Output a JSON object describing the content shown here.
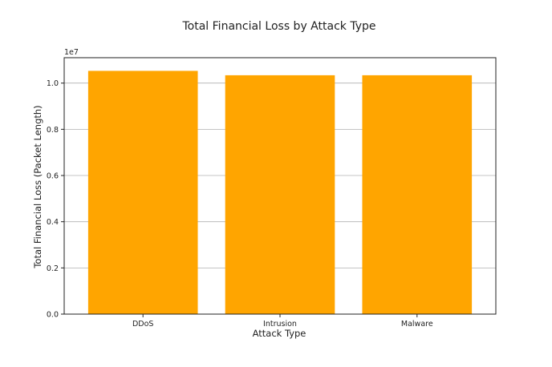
{
  "chart_data": {
    "type": "bar",
    "title": "Total Financial Loss by Attack Type",
    "xlabel": "Attack Type",
    "ylabel": "Total Financial Loss (Packet Length)",
    "y_offset_label": "1e7",
    "categories": [
      "DDoS",
      "Intrusion",
      "Malware"
    ],
    "values": [
      10530000,
      10340000,
      10340000
    ],
    "ylim": [
      0,
      11100000
    ],
    "yticks": [
      0,
      2000000,
      4000000,
      6000000,
      8000000,
      10000000
    ],
    "ytick_labels": [
      "0.0",
      "0.2",
      "0.4",
      "0.6",
      "0.8",
      "1.0"
    ],
    "grid": "y",
    "bar_color": "#FFA500"
  }
}
